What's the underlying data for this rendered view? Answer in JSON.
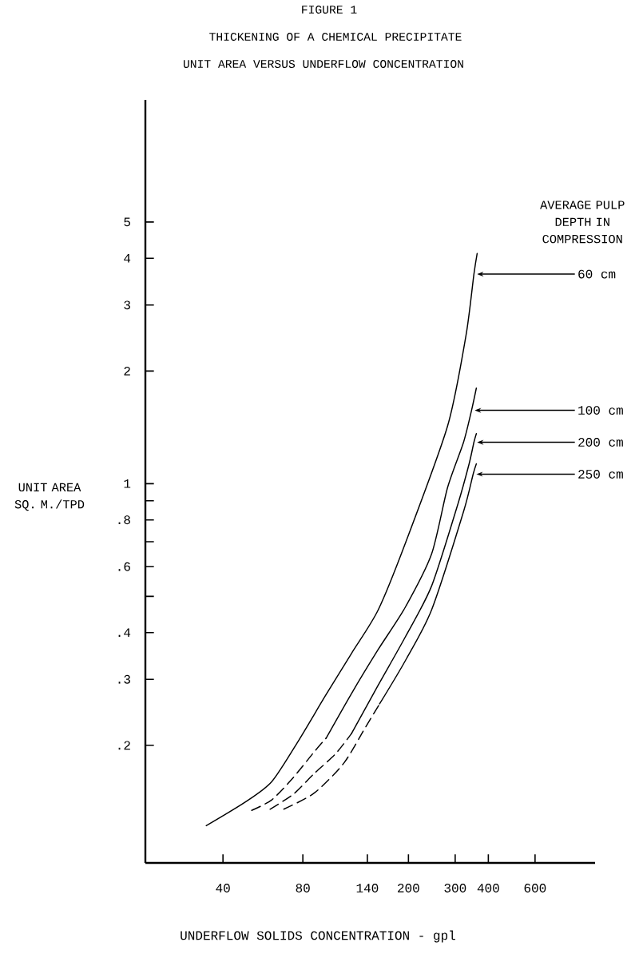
{
  "chart_data": {
    "type": "line",
    "annotations": [
      "FIGURE 1"
    ],
    "title": "THICKENING OF A CHEMICAL PRECIPITATE",
    "subtitle": "UNIT AREA VERSUS UNDERFLOW CONCENTRATION",
    "xlabel": "UNDERFLOW SOLIDS CONCENTRATION - gpl",
    "ylabel": "UNIT AREA SQ. M./TPD",
    "legend_title": "AVERAGE PULP DEPTH IN COMPRESSION",
    "log": "xy",
    "xlim": [
      20.4,
      1010
    ],
    "ylim": [
      0.097,
      10.6
    ],
    "xticks": [
      40,
      80,
      140,
      200,
      300,
      400,
      600
    ],
    "yticks": [
      {
        "value": 0.2,
        "label": ".2"
      },
      {
        "value": 0.3,
        "label": ".3"
      },
      {
        "value": 0.4,
        "label": ".4"
      },
      {
        "value": 0.5,
        "label": null
      },
      {
        "value": 0.6,
        "label": ".6"
      },
      {
        "value": 0.7,
        "label": null
      },
      {
        "value": 0.8,
        "label": ".8"
      },
      {
        "value": 0.9,
        "label": null
      },
      1,
      2,
      3,
      4,
      5
    ],
    "series": [
      {
        "name": "60 cm",
        "color": "#000000",
        "line_style": "solid",
        "x": [
          34.6,
          48.5,
          61.1,
          76.8,
          97.2,
          122,
          153.6,
          194.4,
          280.8,
          329.6,
          353,
          363
        ],
        "values": [
          0.122,
          0.141,
          0.16,
          0.205,
          0.271,
          0.352,
          0.459,
          0.691,
          1.425,
          2.49,
          3.63,
          4.12
        ]
      },
      {
        "color": "#000000",
        "line_style": "dashed",
        "x": [
          51.3,
          61.1,
          73.6,
          88.2,
          97.9
        ],
        "values": [
          0.134,
          0.143,
          0.164,
          0.192,
          0.209
        ]
      },
      {
        "name": "100 cm",
        "color": "#000000",
        "line_style": "solid",
        "x": [
          97.9,
          122,
          153.6,
          194.4,
          244.5,
          280.8,
          322.6,
          345.8,
          360.5
        ],
        "values": [
          0.209,
          0.275,
          0.36,
          0.467,
          0.649,
          0.976,
          1.29,
          1.57,
          1.8
        ]
      },
      {
        "color": "#000000",
        "line_style": "dashed",
        "x": [
          60.2,
          73.6,
          88.2,
          106.4,
          122
        ],
        "values": [
          0.135,
          0.148,
          0.168,
          0.19,
          0.215
        ]
      },
      {
        "name": "200 cm",
        "color": "#000000",
        "line_style": "solid",
        "x": [
          122,
          153.6,
          194.4,
          244.5,
          307.4,
          338.6,
          353,
          360.5
        ],
        "values": [
          0.215,
          0.289,
          0.389,
          0.533,
          0.884,
          1.13,
          1.29,
          1.36
        ]
      },
      {
        "color": "#000000",
        "line_style": "dashed",
        "x": [
          67.8,
          88.2,
          114,
          137.5,
          155.7
        ],
        "values": [
          0.135,
          0.149,
          0.179,
          0.223,
          0.258
        ]
      },
      {
        "name": "250 cm",
        "color": "#000000",
        "line_style": "solid",
        "x": [
          155.7,
          194.4,
          244.5,
          322.6,
          350.6,
          360.5
        ],
        "values": [
          0.258,
          0.336,
          0.46,
          0.842,
          1.06,
          1.13
        ]
      }
    ]
  }
}
